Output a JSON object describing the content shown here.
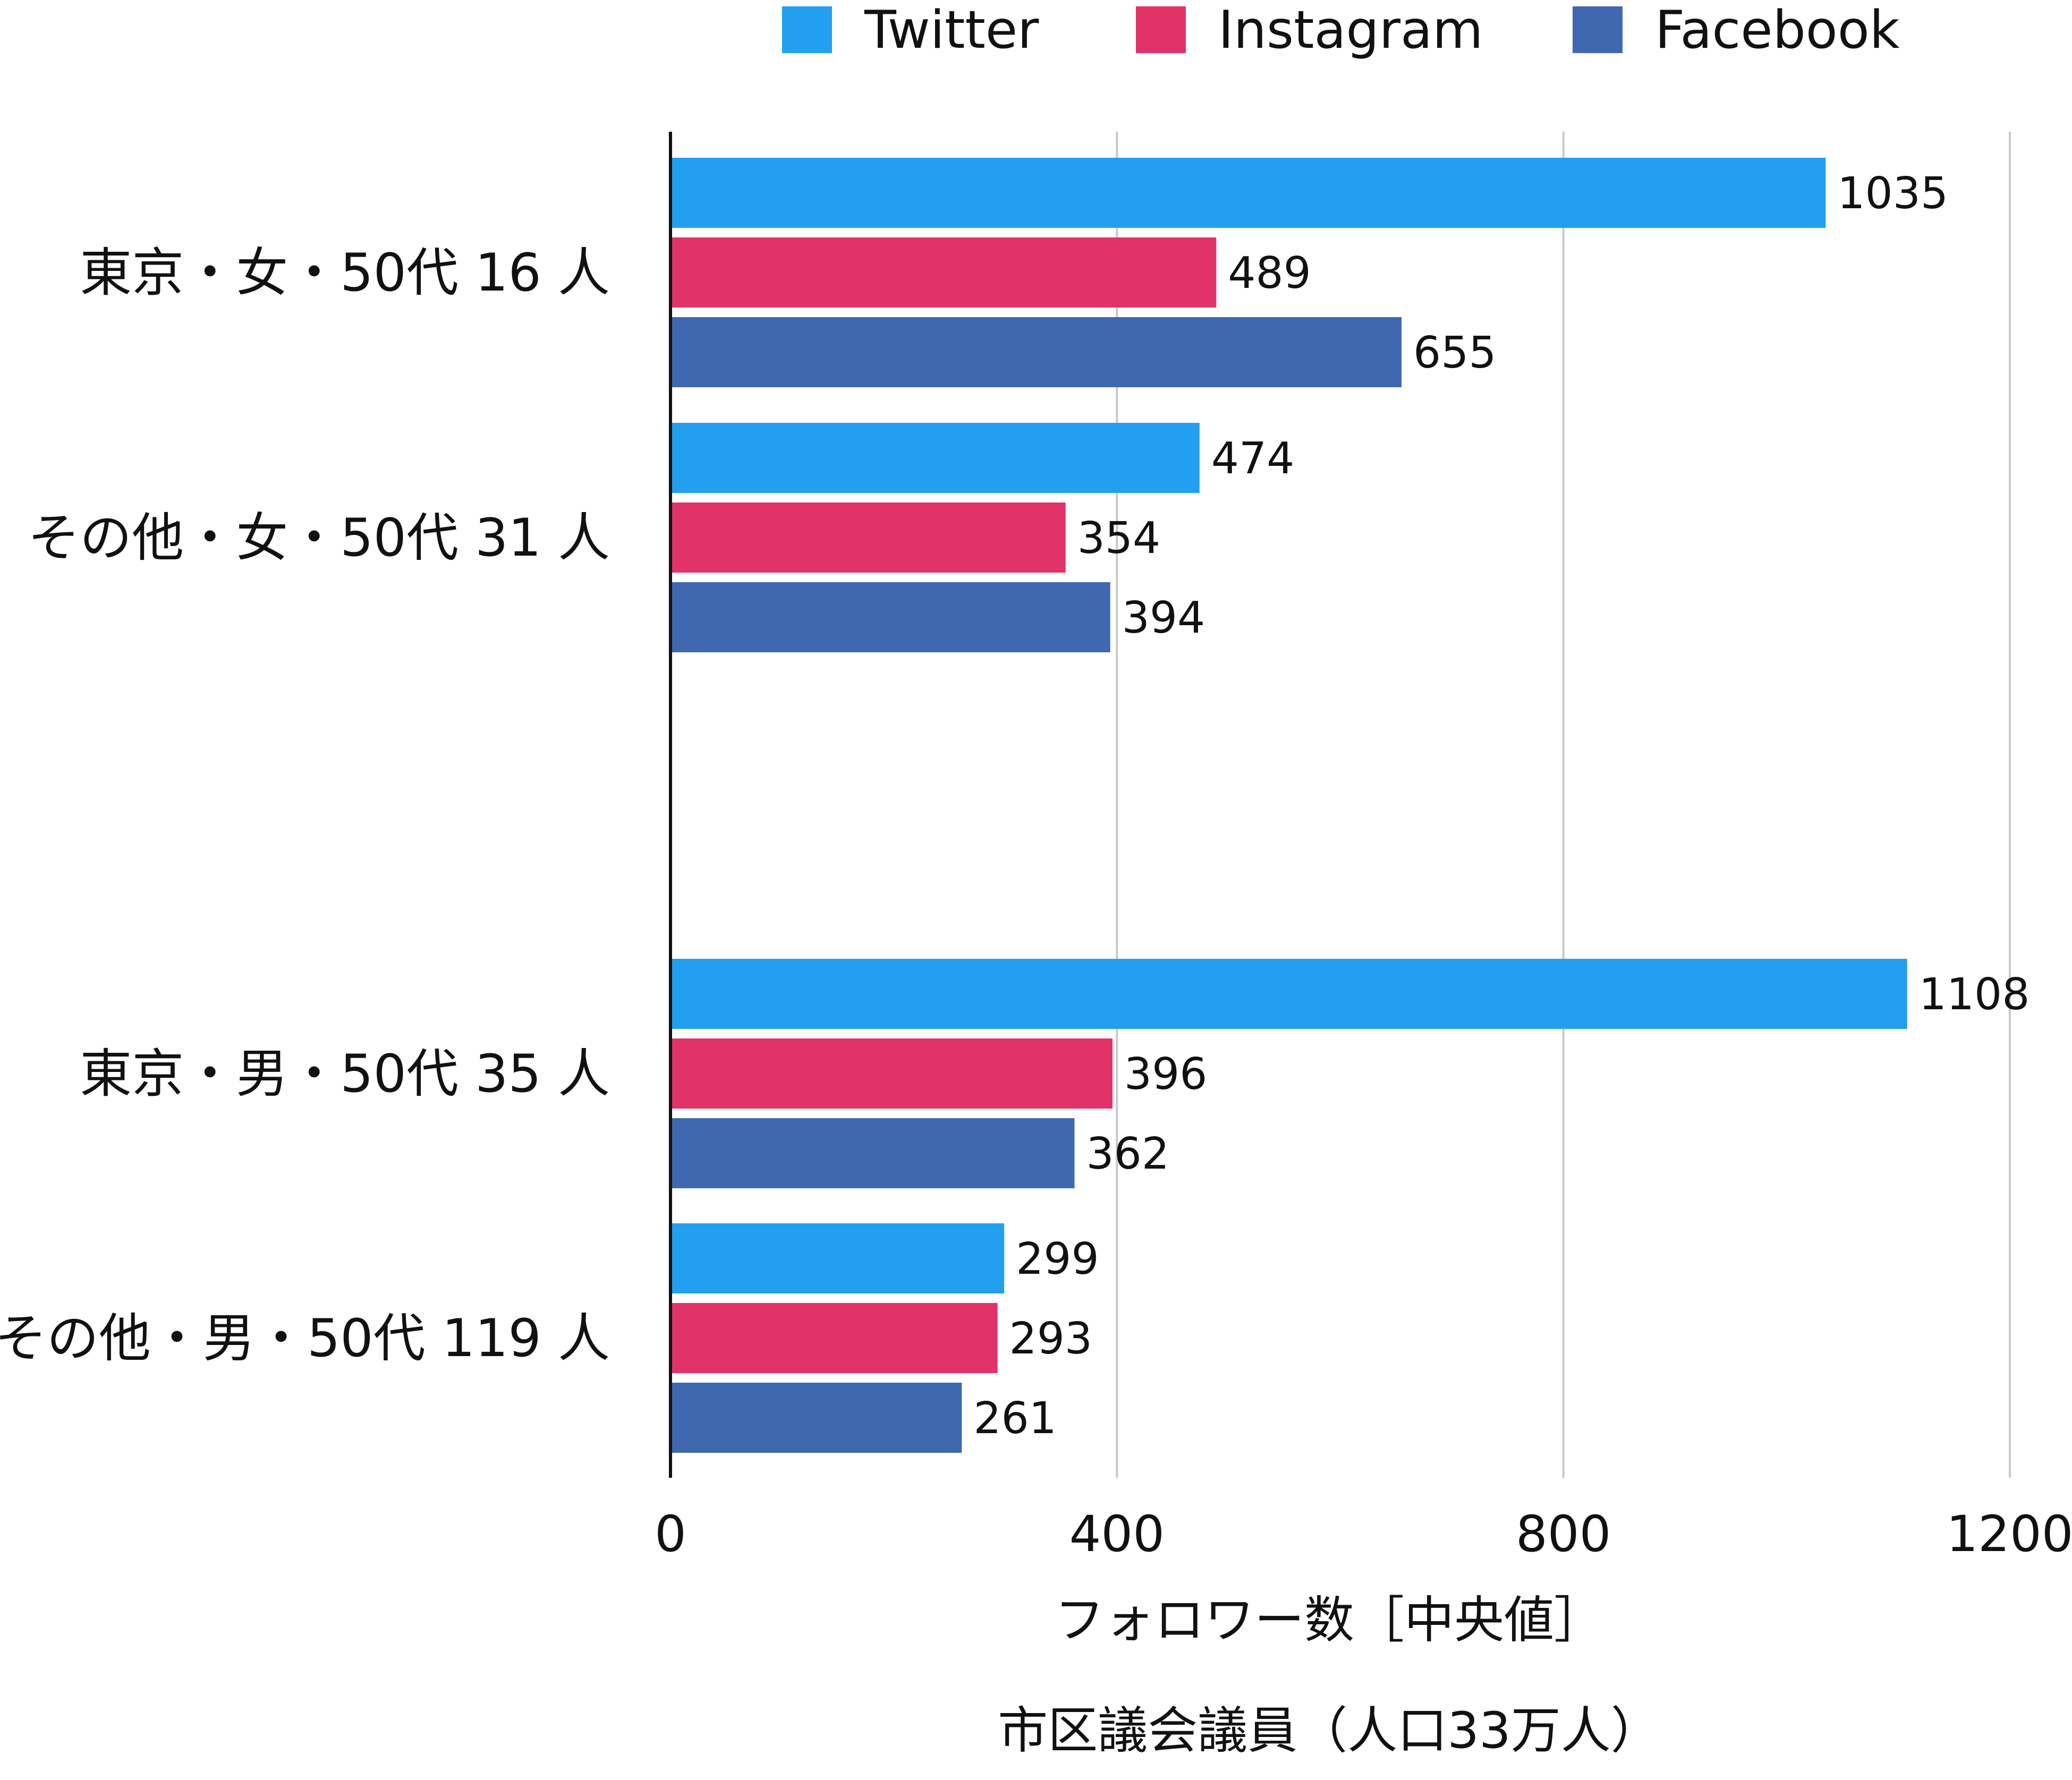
{
  "chart_data": {
    "type": "bar",
    "orientation": "horizontal",
    "categories": [
      "東京・女・50代 16 人",
      "その他・女・50代 31 人",
      "東京・男・50代 35 人",
      "その他・男・50代 119 人"
    ],
    "series": [
      {
        "name": "Twitter",
        "color": "#22a0ef",
        "values": [
          1035,
          474,
          1108,
          299
        ]
      },
      {
        "name": "Instagram",
        "color": "#e2326a",
        "values": [
          489,
          354,
          396,
          293
        ]
      },
      {
        "name": "Facebook",
        "color": "#4068b0",
        "values": [
          655,
          394,
          362,
          261
        ]
      }
    ],
    "xlabel": "フォロワー数［中央値］",
    "subtitle": "市区議会議員（人口33万人）",
    "xlim": [
      0,
      1200
    ],
    "xticks": [
      0,
      400,
      800,
      1200
    ],
    "grid": true,
    "legend_position": "top"
  }
}
